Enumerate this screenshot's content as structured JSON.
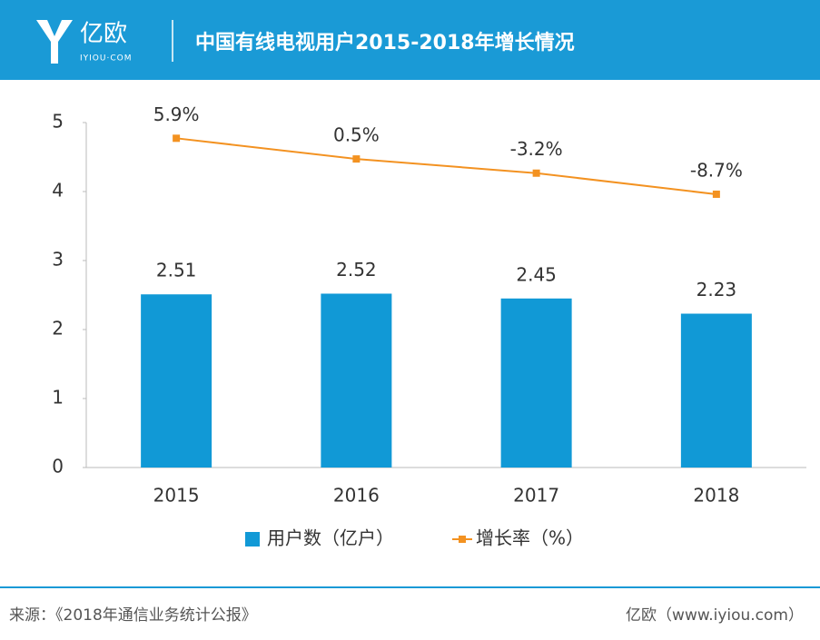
{
  "header": {
    "logo": "亿欧",
    "logo_sub": "IYIOU·COM"
  },
  "chart_data": {
    "type": "bar",
    "title": "中国有线电视用户2015-2018年增长情况",
    "categories": [
      "2015",
      "2016",
      "2017",
      "2018"
    ],
    "series": [
      {
        "name": "用户数（亿户）",
        "type": "bar",
        "color": "#1199d6",
        "values": [
          2.51,
          2.52,
          2.45,
          2.23
        ]
      },
      {
        "name": "增长率（%）",
        "type": "line",
        "axis": "y2",
        "color": "#f39221",
        "values": [
          5.9,
          0.5,
          -3.2,
          -8.7
        ],
        "value_labels": [
          "5.9%",
          "0.5%",
          "-3.2%",
          "-8.7%"
        ]
      }
    ],
    "ylim": [
      0,
      5
    ],
    "yticks": [
      0,
      1,
      2,
      3,
      4,
      5
    ],
    "y2lim": [
      -80,
      10
    ],
    "grid": false,
    "legend": "bottom"
  },
  "footer": {
    "source": "来源：《2018年通信业务统计公报》",
    "credit": "亿欧（www.iyiou.com）"
  }
}
